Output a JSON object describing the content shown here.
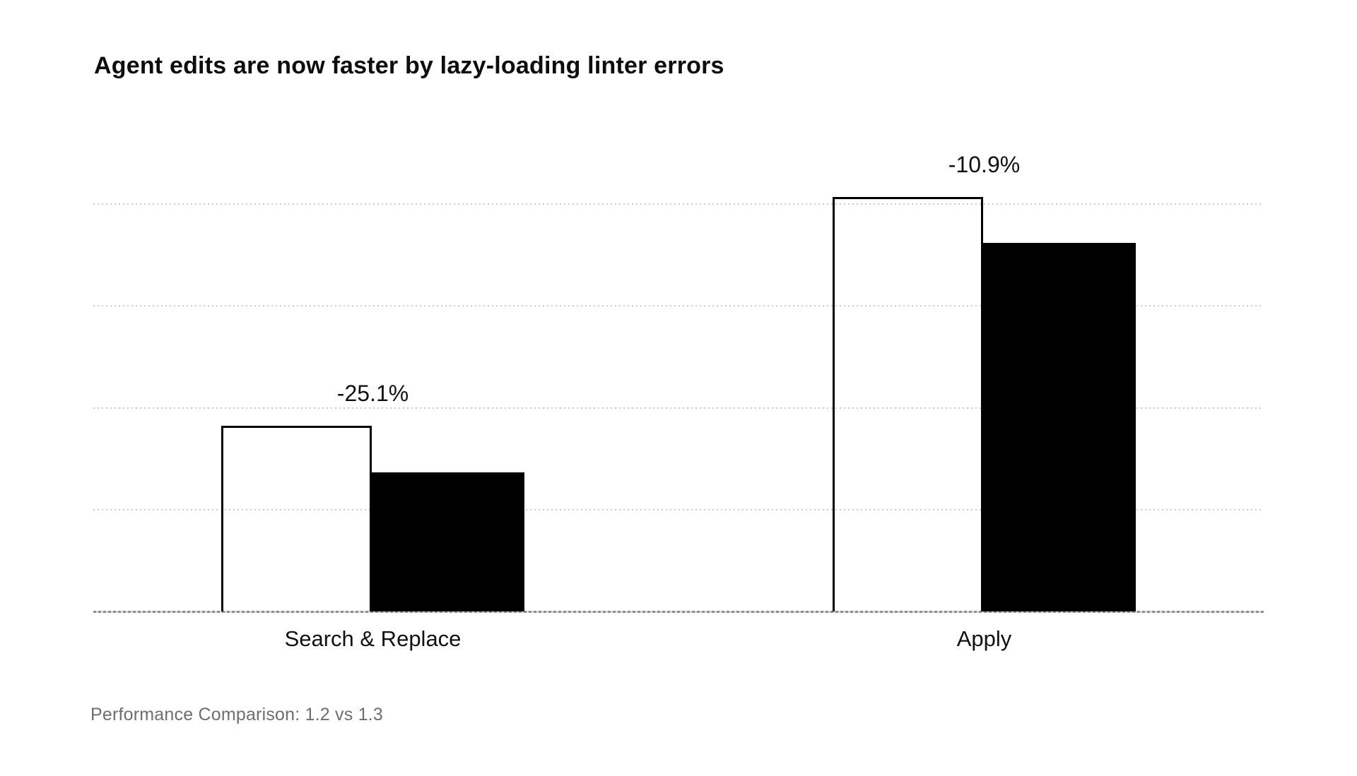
{
  "title": "Agent edits are now faster by lazy-loading linter errors",
  "caption": "Performance Comparison: 1.2 vs 1.3",
  "colors": {
    "background": "#ffffff",
    "bar_outline_border": "#000000",
    "bar_solid_fill": "#000000",
    "gridline": "#cbcbcb",
    "axis": "#8f8f8f",
    "title_text": "#0d0d0d",
    "caption_text": "#6e6e6e"
  },
  "chart_data": {
    "type": "bar",
    "title": "Agent edits are now faster by lazy-loading linter errors",
    "subtitle": "Performance Comparison: 1.2 vs 1.3",
    "categories": [
      "Search & Replace",
      "Apply"
    ],
    "series": [
      {
        "name": "1.2",
        "style": "outlined-white",
        "values": [
          1.82,
          4.06
        ]
      },
      {
        "name": "1.3",
        "style": "solid-black",
        "values": [
          1.36,
          3.61
        ]
      }
    ],
    "annotations": [
      "-25.1%",
      "-10.9%"
    ],
    "unit": "relative duration (y-axis unlabeled)",
    "ylim": [
      0,
      5.3
    ],
    "gridline_spacing_units": 1,
    "grid": "dotted horizontal",
    "legend": "none",
    "xlabel": "",
    "ylabel": ""
  }
}
